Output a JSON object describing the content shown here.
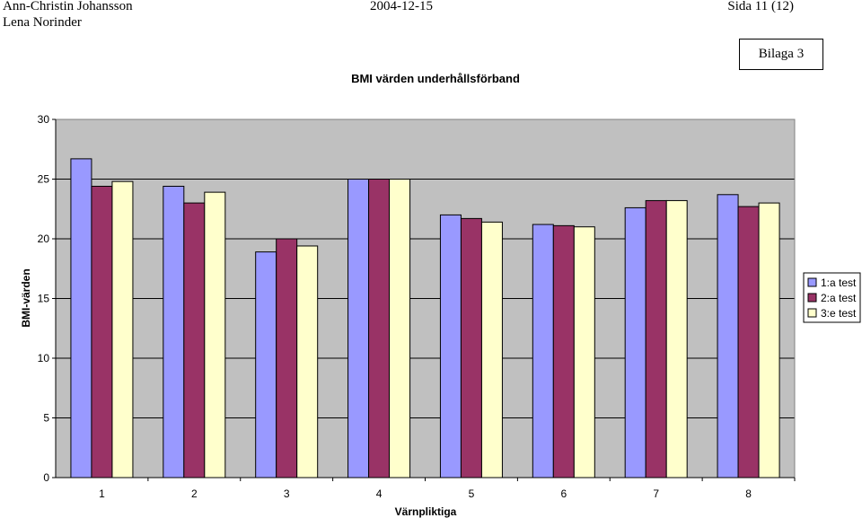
{
  "header": {
    "author_line1": "Ann-Christin Johansson",
    "author_line2": "Lena Norinder",
    "date": "2004-12-15",
    "page": "Sida 11 (12)"
  },
  "appendix_label": "Bilaga 3",
  "chart_data": {
    "type": "bar",
    "title": "BMI värden underhållsförband",
    "xlabel": "Värnpliktiga",
    "ylabel": "BMI-värden",
    "categories": [
      "1",
      "2",
      "3",
      "4",
      "5",
      "6",
      "7",
      "8"
    ],
    "ylim": [
      0,
      30
    ],
    "yticks": [
      0,
      5,
      10,
      15,
      20,
      25,
      30
    ],
    "grid": true,
    "legend": "right",
    "series": [
      {
        "name": "1:a test",
        "color": "#9999ff",
        "values": [
          26.7,
          24.4,
          18.9,
          25.0,
          22.0,
          21.2,
          22.6,
          23.7
        ]
      },
      {
        "name": "2:a test",
        "color": "#993366",
        "values": [
          24.4,
          23.0,
          20.0,
          25.0,
          21.7,
          21.1,
          23.2,
          22.7
        ]
      },
      {
        "name": "3:e test",
        "color": "#ffffcc",
        "values": [
          24.8,
          23.9,
          19.4,
          25.0,
          21.4,
          21.0,
          23.2,
          23.0
        ]
      }
    ]
  }
}
